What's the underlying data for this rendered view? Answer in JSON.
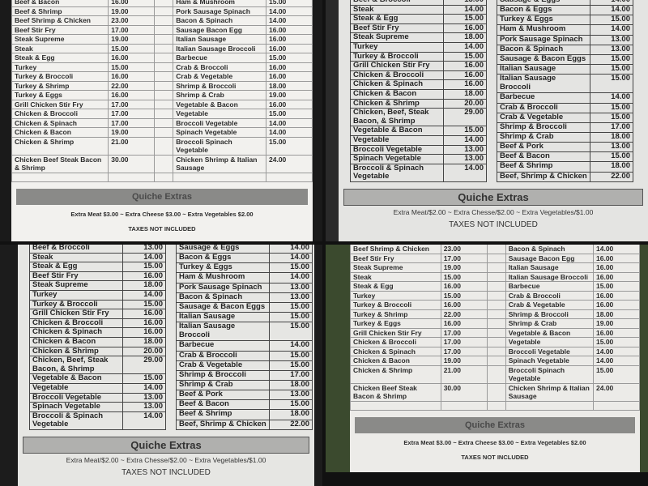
{
  "menu1": {
    "rows": [
      {
        "left": {
          "name": "Beef & Bacon",
          "price": "16.00"
        },
        "right": {
          "name": "Ham & Mushroom",
          "price": "15.00"
        }
      },
      {
        "left": {
          "name": "Beef & Shrimp",
          "price": "19.00"
        },
        "right": {
          "name": "Pork Sausage Spinach",
          "price": "14.00"
        }
      },
      {
        "left": {
          "name": "Beef Shrimp & Chicken",
          "price": "23.00"
        },
        "right": {
          "name": "Bacon & Spinach",
          "price": "14.00"
        }
      },
      {
        "left": {
          "name": "Beef Stir Fry",
          "price": "17.00"
        },
        "right": {
          "name": "Sausage Bacon Egg",
          "price": "16.00"
        }
      },
      {
        "left": {
          "name": "Steak Supreme",
          "price": "19.00"
        },
        "right": {
          "name": "Italian Sausage",
          "price": "16.00"
        }
      },
      {
        "left": {
          "name": "Steak",
          "price": "15.00"
        },
        "right": {
          "name": "Italian Sausage Broccoli",
          "price": "16.00"
        }
      },
      {
        "left": {
          "name": "Steak & Egg",
          "price": "16.00"
        },
        "right": {
          "name": "Barbecue",
          "price": "15.00"
        }
      },
      {
        "left": {
          "name": "Turkey",
          "price": "15.00"
        },
        "right": {
          "name": "Crab & Broccoli",
          "price": "16.00"
        }
      },
      {
        "left": {
          "name": "Turkey & Broccoli",
          "price": "16.00"
        },
        "right": {
          "name": "Crab & Vegetable",
          "price": "16.00"
        }
      },
      {
        "left": {
          "name": "Turkey & Shrimp",
          "price": "22.00"
        },
        "right": {
          "name": "Shrimp & Broccoli",
          "price": "18.00"
        }
      },
      {
        "left": {
          "name": "Turkey & Eggs",
          "price": "16.00"
        },
        "right": {
          "name": "Shrimp & Crab",
          "price": "19.00"
        }
      },
      {
        "left": {
          "name": "Grill Chicken Stir Fry",
          "price": "17.00"
        },
        "right": {
          "name": "Vegetable & Bacon",
          "price": "16.00"
        }
      },
      {
        "left": {
          "name": "Chicken & Broccoli",
          "price": "17.00"
        },
        "right": {
          "name": "Vegetable",
          "price": "15.00"
        }
      },
      {
        "left": {
          "name": "Chicken & Spinach",
          "price": "17.00"
        },
        "right": {
          "name": "Broccoli Vegetable",
          "price": "14.00"
        }
      },
      {
        "left": {
          "name": "Chicken & Bacon",
          "price": "19.00"
        },
        "right": {
          "name": "Spinach Vegetable",
          "price": "14.00"
        }
      },
      {
        "left": {
          "name": "Chicken & Shrimp",
          "price": "21.00"
        },
        "right": {
          "name": "Broccoli Spinach Vegetable",
          "price": "15.00"
        }
      },
      {
        "left": {
          "name": "Chicken Beef Steak Bacon & Shrimp",
          "price": "30.00"
        },
        "right": {
          "name": "Chicken Shrimp & Italian Sausage",
          "price": "24.00"
        }
      }
    ],
    "section_title": "Quiche Extras",
    "extras": "Extra Meat $3.00 ~ Extra Cheese $3.00 ~ Extra Vegetables $2.00",
    "taxes": "TAXES NOT INCLUDED"
  },
  "menu2": {
    "left": [
      {
        "name": "Beef & Broccoli",
        "price": "13.00"
      },
      {
        "name": "Steak",
        "price": "14.00"
      },
      {
        "name": "Steak & Egg",
        "price": "15.00"
      },
      {
        "name": "Beef Stir Fry",
        "price": "16.00"
      },
      {
        "name": "Steak Supreme",
        "price": "18.00"
      },
      {
        "name": "Turkey",
        "price": "14.00"
      },
      {
        "name": "Turkey & Broccoli",
        "price": "15.00"
      },
      {
        "name": "Grill Chicken Stir Fry",
        "price": "16.00"
      },
      {
        "name": "Chicken & Broccoli",
        "price": "16.00"
      },
      {
        "name": "Chicken & Spinach",
        "price": "16.00"
      },
      {
        "name": "Chicken & Bacon",
        "price": "18.00"
      },
      {
        "name": "Chicken & Shrimp",
        "price": "20.00"
      },
      {
        "name": "Chicken, Beef, Steak Bacon, & Shrimp",
        "price": "29.00"
      },
      {
        "name": "Vegetable & Bacon",
        "price": "15.00"
      },
      {
        "name": "Vegetable",
        "price": "14.00"
      },
      {
        "name": "Broccoli Vegetable",
        "price": "13.00"
      },
      {
        "name": "Spinach Vegetable",
        "price": "13.00"
      },
      {
        "name": "Broccoli & Spinach Vegetable",
        "price": "14.00"
      }
    ],
    "right": [
      {
        "name": "Sausage & Eggs",
        "price": "14.00"
      },
      {
        "name": "Bacon & Eggs",
        "price": "14.00"
      },
      {
        "name": "Turkey & Eggs",
        "price": "15.00"
      },
      {
        "name": "Ham & Mushroom",
        "price": "14.00"
      },
      {
        "name": "Pork Sausage Spinach",
        "price": "13.00"
      },
      {
        "name": "Bacon & Spinach",
        "price": "13.00"
      },
      {
        "name": "Sausage & Bacon Eggs",
        "price": "15.00"
      },
      {
        "name": "Italian Sausage",
        "price": "15.00"
      },
      {
        "name": "Italian Sausage Broccoli",
        "price": "15.00"
      },
      {
        "name": "Barbecue",
        "price": "14.00"
      },
      {
        "name": "Crab & Broccoli",
        "price": "15.00"
      },
      {
        "name": "Crab & Vegetable",
        "price": "15.00"
      },
      {
        "name": "Shrimp & Broccoli",
        "price": "17.00"
      },
      {
        "name": "Shrimp & Crab",
        "price": "18.00"
      },
      {
        "name": "Beef & Pork",
        "price": "13.00"
      },
      {
        "name": "Beef & Bacon",
        "price": "15.00"
      },
      {
        "name": "Beef & Shrimp",
        "price": "18.00"
      },
      {
        "name": "Beef, Shrimp & Chicken",
        "price": "22.00"
      }
    ],
    "section_title": "Quiche Extras",
    "extras": "Extra Meat/$2.00 ~ Extra Chesse/$2.00 ~ Extra Vegetables/$1.00",
    "taxes": "TAXES NOT INCLUDED"
  }
}
